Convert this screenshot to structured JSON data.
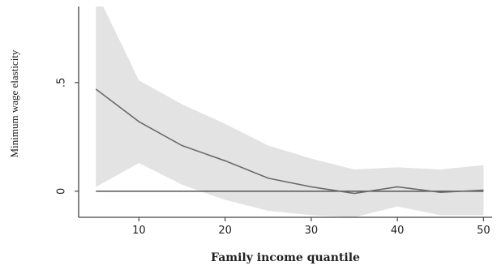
{
  "chart_data": {
    "type": "line",
    "title": "",
    "xlabel": "Family income quantile",
    "ylabel": "Minimum wage elasticity",
    "xlim": [
      3,
      51
    ],
    "ylim": [
      -0.12,
      0.85
    ],
    "x_ticks": [
      10,
      20,
      30,
      40,
      50
    ],
    "x_tick_labels": [
      "10",
      "20",
      "30",
      "40",
      "50"
    ],
    "y_ticks": [
      0,
      0.5
    ],
    "y_tick_labels": [
      "0",
      ".5"
    ],
    "reference_line_y": 0,
    "grid": false,
    "legend": "none",
    "colors": {
      "line": "#6b6b6b",
      "band": "#e3e3e3",
      "reference": "#555555",
      "axis": "#444444"
    },
    "series": [
      {
        "x": [
          5,
          10,
          15,
          20,
          25,
          30,
          35,
          40,
          45,
          50
        ],
        "y": [
          0.47,
          0.32,
          0.21,
          0.14,
          0.06,
          0.02,
          -0.01,
          0.02,
          -0.005,
          0.005
        ],
        "ci_lower": [
          0.02,
          0.13,
          0.03,
          -0.04,
          -0.09,
          -0.11,
          -0.12,
          -0.07,
          -0.11,
          -0.11
        ],
        "ci_upper": [
          0.92,
          0.51,
          0.4,
          0.31,
          0.21,
          0.15,
          0.1,
          0.11,
          0.1,
          0.12
        ]
      }
    ]
  }
}
